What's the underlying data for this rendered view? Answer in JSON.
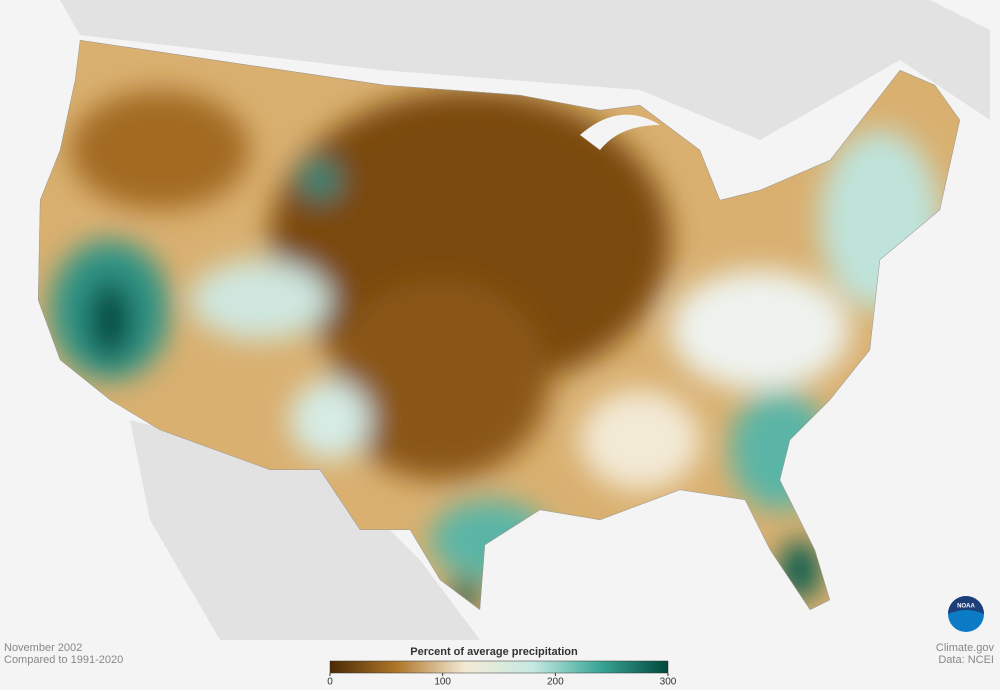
{
  "header": {
    "period": "November 2002",
    "baseline": "Compared to 1991-2020"
  },
  "legend": {
    "title": "Percent of average precipitation",
    "range": [
      0,
      300
    ],
    "ticks": [
      0,
      100,
      200,
      300
    ],
    "colors": [
      "#4a2a05",
      "#b0772a",
      "#f3ead6",
      "#c6e9e2",
      "#3aa596",
      "#00483c"
    ]
  },
  "credits": {
    "site": "Climate.gov",
    "source": "Data: NCEI",
    "logo": "NOAA"
  }
}
